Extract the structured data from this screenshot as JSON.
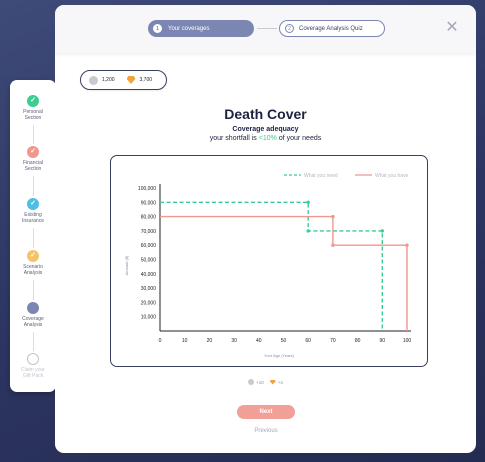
{
  "sidebar": {
    "steps": [
      {
        "label": "Personal\nSection",
        "color": "#3dcc91",
        "state": "done"
      },
      {
        "label": "Financial\nSection",
        "color": "#f0978d",
        "state": "done"
      },
      {
        "label": "Existing\nInsurance",
        "color": "#4cbfe3",
        "state": "done"
      },
      {
        "label": "Scenario\nAnalysis",
        "color": "#f5c26b",
        "state": "done"
      },
      {
        "label": "Coverage\nAnalysis",
        "color": "#7c86b3",
        "state": "current"
      },
      {
        "label": "Claim your\nGift Pack",
        "color": "#c2c4cf",
        "state": "disabled"
      }
    ],
    "check_glyph": "✓"
  },
  "header": {
    "tab_active": {
      "number": "1",
      "label": "Your coverages"
    },
    "tab_next": {
      "number": "2",
      "label": "Coverage Analysis Quiz"
    },
    "close_glyph": "✕"
  },
  "points": {
    "coins": "1,200",
    "gems": "3,700"
  },
  "page": {
    "title": "Death Cover",
    "subtitle": "Coverage adequacy",
    "shortfall_prefix": "your shortfall is ",
    "shortfall_value": "<10%",
    "shortfall_suffix": " of your needs"
  },
  "chart_data": {
    "type": "line",
    "xlabel": "Your Age (Years)",
    "ylabel": "Amount ($)",
    "xlim": [
      0,
      100
    ],
    "ylim": [
      0,
      100000
    ],
    "xticks": [
      0,
      10,
      20,
      30,
      40,
      50,
      60,
      70,
      80,
      90,
      100
    ],
    "yticks": [
      10000,
      20000,
      30000,
      40000,
      50000,
      60000,
      70000,
      80000,
      90000,
      100000
    ],
    "ytick_labels": [
      "10,000",
      "20,000",
      "30,000",
      "40,000",
      "50,000",
      "60,000",
      "70,000",
      "80,000",
      "90,000",
      "100,000"
    ],
    "legend_position": "top-right",
    "series": [
      {
        "name": "What you need",
        "color": "#3dcc91",
        "style": "dashed",
        "points": [
          [
            0,
            90000
          ],
          [
            60,
            90000
          ],
          [
            60,
            70000
          ],
          [
            90,
            70000
          ],
          [
            90,
            0
          ]
        ],
        "markers": [
          [
            60,
            90000
          ],
          [
            60,
            70000
          ],
          [
            90,
            70000
          ]
        ]
      },
      {
        "name": "What you have",
        "color": "#f0978d",
        "style": "solid",
        "points": [
          [
            0,
            80000
          ],
          [
            70,
            80000
          ],
          [
            70,
            60000
          ],
          [
            100,
            60000
          ],
          [
            100,
            0
          ]
        ],
        "markers": [
          [
            70,
            80000
          ],
          [
            70,
            60000
          ],
          [
            100,
            60000
          ]
        ]
      }
    ]
  },
  "rewards": {
    "coins": "+10",
    "gems": "+4"
  },
  "footer": {
    "next_label": "Next",
    "previous_label": "Previous"
  }
}
